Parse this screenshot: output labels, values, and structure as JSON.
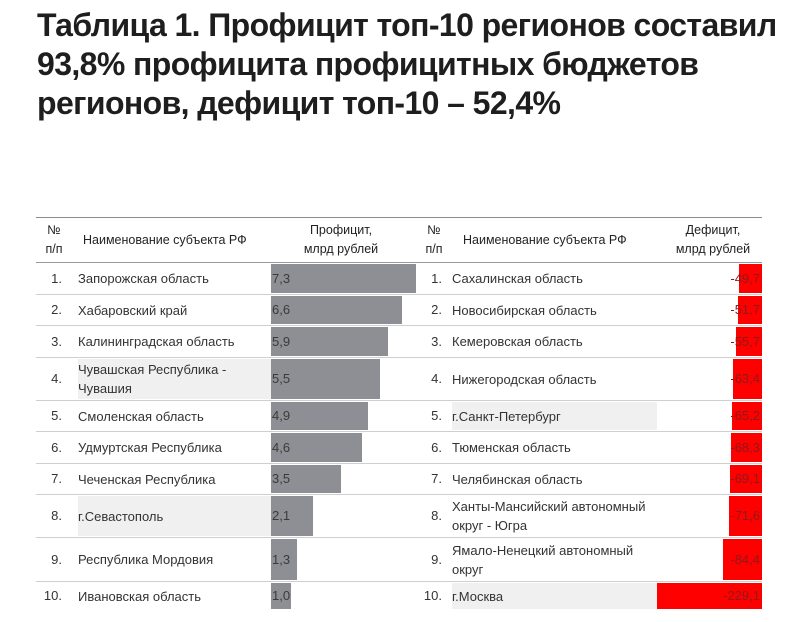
{
  "title": "Таблица 1. Профицит топ-10 регионов составил 93,8% профицита профицитных бюджетов регионов, дефицит топ-10 – 52,4%",
  "headers": {
    "left": {
      "num": [
        "№",
        "п/п"
      ],
      "name": "Наименование субъекта РФ",
      "value": [
        "Профицит,",
        "млрд рублей"
      ]
    },
    "right": {
      "num": [
        "№",
        "п/п"
      ],
      "name": "Наименование субъекта РФ",
      "value": [
        "Дефицит,",
        "млрд рублей"
      ]
    }
  },
  "colors": {
    "surplus_bar": "#8e8f94",
    "deficit_bar": "#ff0000",
    "highlight": "#f0f0f0"
  },
  "chart_data": {
    "type": "table",
    "title": "Таблица 1. Профицит топ-10 регионов составил 93,8% профицита профицитных бюджетов регионов, дефицит топ-10 – 52,4%",
    "surplus": {
      "header": "Профицит, млрд рублей",
      "rows": [
        {
          "n": "1.",
          "name": [
            "Запорожская область"
          ],
          "value": 7.3,
          "label": "7,3",
          "highlight": false
        },
        {
          "n": "2.",
          "name": [
            "Хабаровский край"
          ],
          "value": 6.6,
          "label": "6,6",
          "highlight": false
        },
        {
          "n": "3.",
          "name": [
            "Калининградская область"
          ],
          "value": 5.9,
          "label": "5,9",
          "highlight": false
        },
        {
          "n": "4.",
          "name": [
            "Чувашская Республика -",
            "Чувашия"
          ],
          "value": 5.5,
          "label": "5,5",
          "highlight": true
        },
        {
          "n": "5.",
          "name": [
            "Смоленская область"
          ],
          "value": 4.9,
          "label": "4,9",
          "highlight": false
        },
        {
          "n": "6.",
          "name": [
            "Удмуртская Республика"
          ],
          "value": 4.6,
          "label": "4,6",
          "highlight": false
        },
        {
          "n": "7.",
          "name": [
            "Чеченская Республика"
          ],
          "value": 3.5,
          "label": "3,5",
          "highlight": false
        },
        {
          "n": "8.",
          "name": [
            "г.Севастополь"
          ],
          "value": 2.1,
          "label": "2,1",
          "highlight": true
        },
        {
          "n": "9.",
          "name": [
            "Республика Мордовия"
          ],
          "value": 1.3,
          "label": "1,3",
          "highlight": false
        },
        {
          "n": "10.",
          "name": [
            "Ивановская область"
          ],
          "value": 1.0,
          "label": "1,0",
          "highlight": false
        }
      ]
    },
    "deficit": {
      "header": "Дефицит, млрд рублей",
      "rows": [
        {
          "n": "1.",
          "name": [
            "Сахалинская область"
          ],
          "value": -49.7,
          "label": "-49,7",
          "highlight": false
        },
        {
          "n": "2.",
          "name": [
            "Новосибирская область"
          ],
          "value": -51.7,
          "label": "-51,7",
          "highlight": false
        },
        {
          "n": "3.",
          "name": [
            "Кемеровская область"
          ],
          "value": -55.7,
          "label": "-55,7",
          "highlight": false
        },
        {
          "n": "4.",
          "name": [
            "Нижегородская область"
          ],
          "value": -63.4,
          "label": "-63,4",
          "highlight": false
        },
        {
          "n": "5.",
          "name": [
            "г.Санкт-Петербург"
          ],
          "value": -65.2,
          "label": "-65,2",
          "highlight": true
        },
        {
          "n": "6.",
          "name": [
            "Тюменская область"
          ],
          "value": -68.3,
          "label": "-68,3",
          "highlight": false
        },
        {
          "n": "7.",
          "name": [
            "Челябинская область"
          ],
          "value": -69.1,
          "label": "-69,1",
          "highlight": false
        },
        {
          "n": "8.",
          "name": [
            "Ханты-Мансийский автономный",
            "округ - Югра"
          ],
          "value": -71.6,
          "label": "-71,6",
          "highlight": false
        },
        {
          "n": "9.",
          "name": [
            "Ямало-Ненецкий автономный",
            "округ"
          ],
          "value": -84.4,
          "label": "-84,4",
          "highlight": false
        },
        {
          "n": "10.",
          "name": [
            "г.Москва"
          ],
          "value": -229.1,
          "label": "-229,1",
          "highlight": true
        }
      ]
    }
  }
}
